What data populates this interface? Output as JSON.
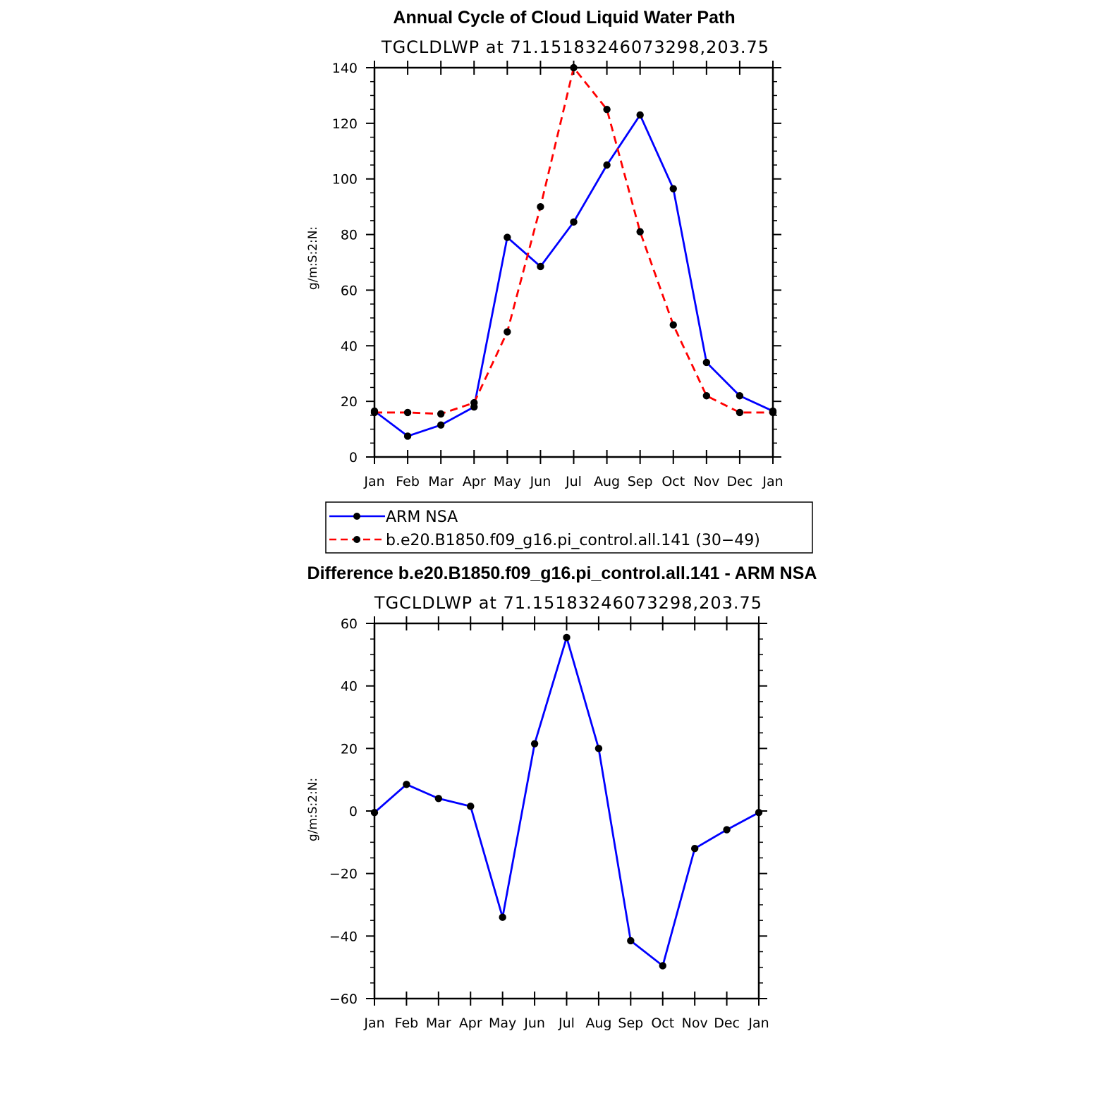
{
  "chart_data": [
    {
      "type": "line",
      "title": "Annual Cycle of Cloud Liquid Water Path",
      "subtitle": "TGCLDLWP  at  71.15183246073298,203.75",
      "xlabel": "",
      "ylabel": "g/m:S:2:N:",
      "categories": [
        "Jan",
        "Feb",
        "Mar",
        "Apr",
        "May",
        "Jun",
        "Jul",
        "Aug",
        "Sep",
        "Oct",
        "Nov",
        "Dec",
        "Jan"
      ],
      "ylim": [
        0,
        140
      ],
      "yticks": [
        0,
        20,
        40,
        60,
        80,
        100,
        120,
        140
      ],
      "legend": "below",
      "series": [
        {
          "name": "ARM  NSA",
          "color": "#0000ff",
          "dash": "solid",
          "values": [
            16.5,
            7.5,
            11.5,
            18.0,
            79.0,
            68.5,
            84.5,
            105.0,
            123.0,
            96.5,
            34.0,
            22.0,
            16.5
          ]
        },
        {
          "name": "b.e20.B1850.f09_g16.pi_control.all.141  (30−49)",
          "color": "#ff0000",
          "dash": "dashed",
          "values": [
            16.0,
            16.0,
            15.5,
            19.5,
            45.0,
            90.0,
            140.0,
            125.0,
            81.0,
            47.5,
            22.0,
            16.0,
            16.0
          ]
        }
      ]
    },
    {
      "type": "line",
      "title": "Difference b.e20.B1850.f09_g16.pi_control.all.141 - ARM NSA",
      "subtitle": "TGCLDLWP  at  71.15183246073298,203.75",
      "xlabel": "",
      "ylabel": "g/m:S:2:N:",
      "categories": [
        "Jan",
        "Feb",
        "Mar",
        "Apr",
        "May",
        "Jun",
        "Jul",
        "Aug",
        "Sep",
        "Oct",
        "Nov",
        "Dec",
        "Jan"
      ],
      "ylim": [
        -60,
        60
      ],
      "yticks": [
        -60,
        -40,
        -20,
        0,
        20,
        40,
        60
      ],
      "series": [
        {
          "color": "#0000ff",
          "dash": "solid",
          "values": [
            -0.5,
            8.5,
            4.0,
            1.5,
            -34.0,
            21.5,
            55.5,
            20.0,
            -41.5,
            -49.5,
            -12.0,
            -6.0,
            -0.5
          ]
        }
      ]
    }
  ]
}
